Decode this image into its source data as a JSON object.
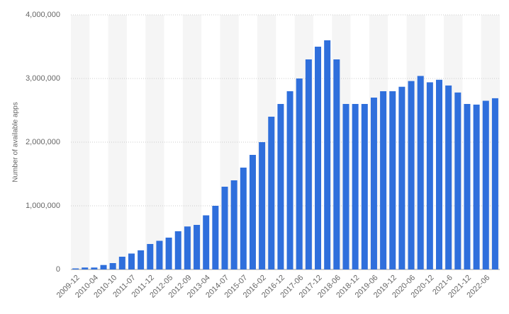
{
  "chart_data": {
    "type": "bar",
    "y_label": "Number of available apps",
    "categories": [
      "2009-12",
      null,
      "2010-04",
      null,
      "2010-10",
      null,
      "2011-07",
      null,
      "2011-12",
      null,
      "2012-05",
      null,
      "2012-09",
      null,
      "2013-04",
      null,
      "2014-07",
      null,
      "2015-07",
      null,
      "2016-02",
      null,
      "2016-12",
      null,
      "2017-06",
      null,
      "2017-12",
      null,
      "2018-06",
      null,
      "2018-12",
      null,
      "2019-06",
      null,
      "2019-12",
      null,
      "2020-06",
      null,
      "2020-12",
      null,
      "2021-6",
      null,
      "2021-12",
      null,
      "2022-06",
      null
    ],
    "values": [
      16000,
      30000,
      30000,
      70000,
      100000,
      200000,
      250000,
      300000,
      400000,
      450000,
      500000,
      600000,
      675000,
      700000,
      850000,
      1000000,
      1300000,
      1400000,
      1600000,
      1800000,
      2000000,
      2400000,
      2600000,
      2800000,
      3000000,
      3300000,
      3500000,
      3600000,
      3300000,
      2600000,
      2600000,
      2600000,
      2700000,
      2800000,
      2800000,
      2870000,
      2960000,
      3040000,
      2940000,
      2980000,
      2890000,
      2780000,
      2600000,
      2590000,
      2650000,
      2690000
    ],
    "color": "#2f6fdc",
    "ylim": [
      0,
      4000000
    ],
    "yticks": [
      0,
      {
        "value": 1000000,
        "label": "1,000,000"
      },
      {
        "value": 2000000,
        "label": "2,000,000"
      },
      {
        "value": 3000000,
        "label": "3,000,000"
      },
      {
        "value": 4000000,
        "label": "4,000,000"
      }
    ],
    "grid": true
  }
}
